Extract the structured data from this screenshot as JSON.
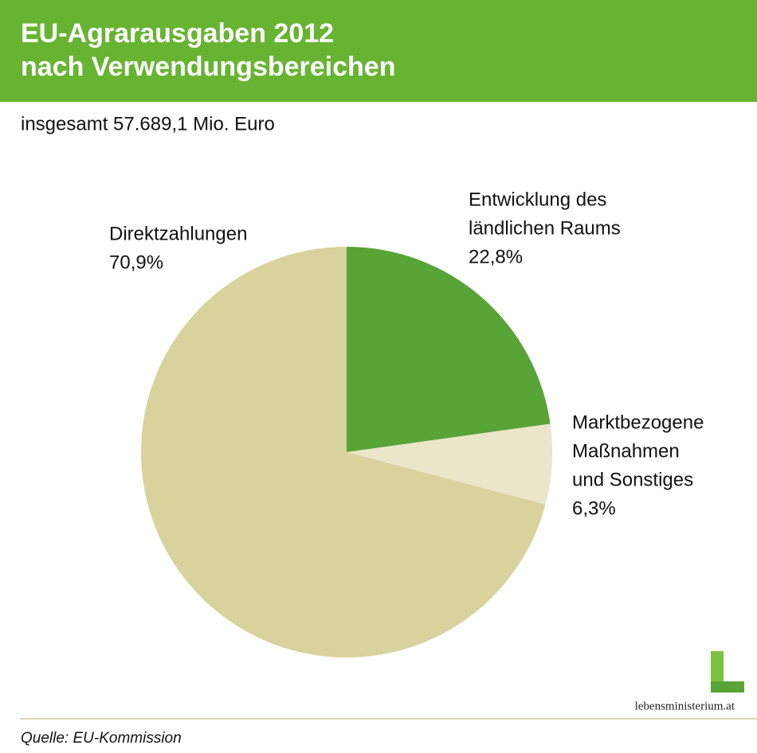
{
  "chart_data": {
    "type": "pie",
    "title": [
      "EU-Agrarausgaben 2012",
      "nach Verwendungsbereichen"
    ],
    "subtitle": "insgesamt 57.689,1 Mio. Euro",
    "categories": [
      [
        "Entwicklung des",
        "ländlichen Raums"
      ],
      [
        "Marktbezogene",
        "Maßnahmen",
        "und Sonstiges"
      ],
      [
        "Direktzahlungen"
      ]
    ],
    "values": [
      22.8,
      6.3,
      70.9
    ],
    "value_labels": [
      "22,8%",
      "6,3%",
      "70,9%"
    ],
    "colors": [
      "#58a437",
      "#ebe5c9",
      "#d8d29c"
    ],
    "source": "Quelle: EU-Kommission",
    "logo": "lebensministerium.at"
  }
}
